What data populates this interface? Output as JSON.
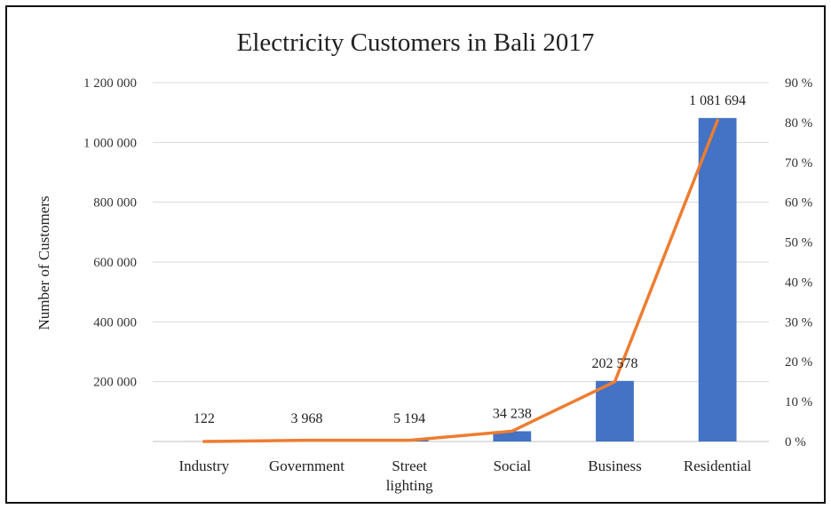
{
  "chart_data": {
    "type": "bar",
    "title": "Electricity Customers in Bali 2017",
    "ylabel": "Number of Customers",
    "categories": [
      "Industry",
      "Government",
      "Street lighting",
      "Social",
      "Business",
      "Residential"
    ],
    "category_lines": [
      [
        "Industry"
      ],
      [
        "Government"
      ],
      [
        "Street",
        "lighting"
      ],
      [
        "Social"
      ],
      [
        "Business"
      ],
      [
        "Residential"
      ]
    ],
    "series": [
      {
        "type": "bar",
        "values": [
          122,
          3968,
          5194,
          34238,
          202578,
          1081694
        ],
        "data_labels": [
          "122",
          "3 968",
          "5 194",
          "34 238",
          "202 578",
          "1 081 694"
        ],
        "color": "#4472c4",
        "axis": "left"
      },
      {
        "type": "line",
        "values": [
          0.0,
          0.3,
          0.3,
          2.6,
          15.0,
          80.5
        ],
        "color": "#ed7d31",
        "axis": "right"
      }
    ],
    "ylim": [
      0,
      1200000
    ],
    "yticks": [
      200000,
      400000,
      600000,
      800000,
      1000000,
      1200000
    ],
    "ytick_labels": [
      "200 000",
      "400 000",
      "600 000",
      "800 000",
      "1 000 000",
      "1 200 000"
    ],
    "y2lim": [
      0,
      90
    ],
    "y2ticks": [
      0,
      10,
      20,
      30,
      40,
      50,
      60,
      70,
      80,
      90
    ],
    "y2tick_labels": [
      "0 %",
      "10 %",
      "20 %",
      "30 %",
      "40 %",
      "50 %",
      "60 %",
      "70 %",
      "80 %",
      "90 %"
    ],
    "grid": true,
    "legend": "none"
  }
}
